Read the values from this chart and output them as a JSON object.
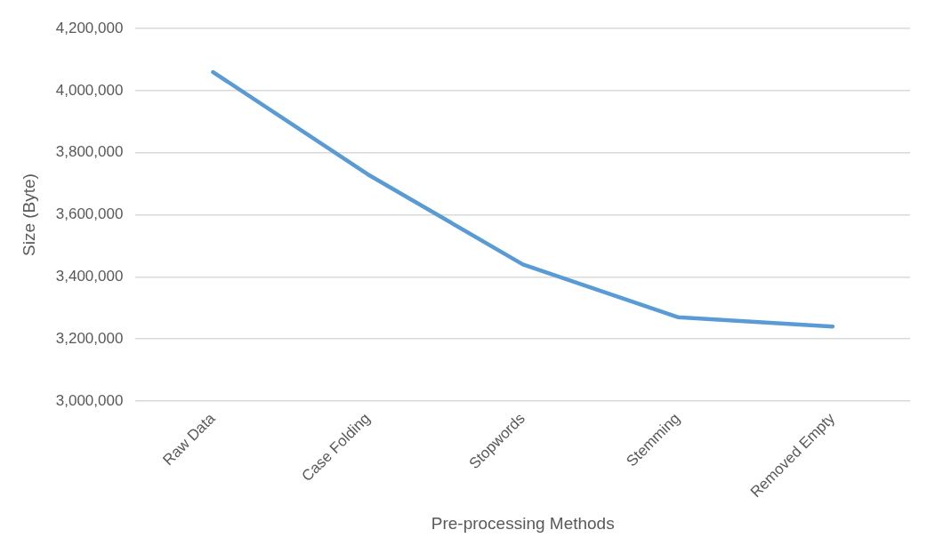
{
  "chart_data": {
    "type": "line",
    "xlabel": "Pre-processing Methods",
    "ylabel": "Size (Byte)",
    "categories": [
      "Raw Data",
      "Case Folding",
      "Stopwords",
      "Stemming",
      "Removed Empty"
    ],
    "series": [
      {
        "color": "#5b9bd5",
        "values": [
          4060000,
          3730000,
          3440000,
          3270000,
          3240000
        ]
      }
    ],
    "ylim": [
      3000000,
      4200000
    ],
    "yticks": [
      {
        "value": 3000000,
        "label": "3,000,000"
      },
      {
        "value": 3200000,
        "label": "3,200,000"
      },
      {
        "value": 3400000,
        "label": "3,400,000"
      },
      {
        "value": 3600000,
        "label": "3,600,000"
      },
      {
        "value": 3800000,
        "label": "3,800,000"
      },
      {
        "value": 4000000,
        "label": "4,000,000"
      },
      {
        "value": 4200000,
        "label": "4,200,000"
      }
    ],
    "grid": "y",
    "legend": false,
    "marker": "none",
    "line_style": "solid"
  }
}
